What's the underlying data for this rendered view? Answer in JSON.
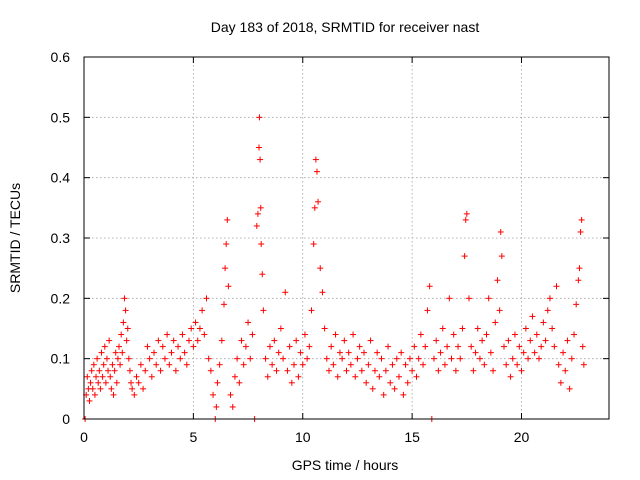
{
  "chart_data": {
    "type": "scatter",
    "title": "Day 183 of 2018, SRMTID for receiver nast",
    "xlabel": "GPS time / hours",
    "ylabel": "SRMTID / TECUs",
    "xlim": [
      0,
      24
    ],
    "ylim": [
      0,
      0.6
    ],
    "xticks": [
      0,
      5,
      10,
      15,
      20
    ],
    "yticks": [
      0,
      0.1,
      0.2,
      0.3,
      0.4,
      0.5,
      0.6
    ],
    "xtick_labels": [
      "0",
      "5",
      "10",
      "15",
      "20"
    ],
    "ytick_labels": [
      "0",
      "0.1",
      "0.2",
      "0.3",
      "0.4",
      "0.5",
      "0.6"
    ],
    "grid": true,
    "marker": "+",
    "series": [
      {
        "name": "SRMTID",
        "color": "#ff0000",
        "points": [
          [
            0.05,
            0.0
          ],
          [
            0.1,
            0.04
          ],
          [
            0.15,
            0.07
          ],
          [
            0.2,
            0.05
          ],
          [
            0.25,
            0.03
          ],
          [
            0.3,
            0.06
          ],
          [
            0.35,
            0.08
          ],
          [
            0.4,
            0.05
          ],
          [
            0.45,
            0.09
          ],
          [
            0.5,
            0.04
          ],
          [
            0.55,
            0.07
          ],
          [
            0.6,
            0.1
          ],
          [
            0.65,
            0.06
          ],
          [
            0.7,
            0.08
          ],
          [
            0.75,
            0.05
          ],
          [
            0.8,
            0.11
          ],
          [
            0.85,
            0.07
          ],
          [
            0.9,
            0.09
          ],
          [
            0.95,
            0.12
          ],
          [
            1.0,
            0.06
          ],
          [
            1.05,
            0.1
          ],
          [
            1.1,
            0.08
          ],
          [
            1.15,
            0.13
          ],
          [
            1.2,
            0.07
          ],
          [
            1.25,
            0.05
          ],
          [
            1.3,
            0.09
          ],
          [
            1.35,
            0.04
          ],
          [
            1.4,
            0.08
          ],
          [
            1.45,
            0.11
          ],
          [
            1.5,
            0.06
          ],
          [
            1.55,
            0.1
          ],
          [
            1.6,
            0.12
          ],
          [
            1.65,
            0.09
          ],
          [
            1.7,
            0.14
          ],
          [
            1.75,
            0.11
          ],
          [
            1.8,
            0.16
          ],
          [
            1.85,
            0.2
          ],
          [
            1.9,
            0.18
          ],
          [
            1.95,
            0.13
          ],
          [
            2.0,
            0.15
          ],
          [
            2.05,
            0.1
          ],
          [
            2.1,
            0.08
          ],
          [
            2.15,
            0.06
          ],
          [
            2.2,
            0.05
          ],
          [
            2.3,
            0.04
          ],
          [
            2.4,
            0.07
          ],
          [
            2.5,
            0.06
          ],
          [
            2.6,
            0.09
          ],
          [
            2.7,
            0.05
          ],
          [
            2.8,
            0.08
          ],
          [
            2.9,
            0.12
          ],
          [
            3.0,
            0.1
          ],
          [
            3.1,
            0.07
          ],
          [
            3.2,
            0.11
          ],
          [
            3.3,
            0.09
          ],
          [
            3.4,
            0.13
          ],
          [
            3.5,
            0.08
          ],
          [
            3.6,
            0.12
          ],
          [
            3.7,
            0.1
          ],
          [
            3.8,
            0.14
          ],
          [
            3.9,
            0.09
          ],
          [
            4.0,
            0.11
          ],
          [
            4.1,
            0.13
          ],
          [
            4.2,
            0.08
          ],
          [
            4.3,
            0.12
          ],
          [
            4.4,
            0.1
          ],
          [
            4.5,
            0.14
          ],
          [
            4.6,
            0.11
          ],
          [
            4.7,
            0.09
          ],
          [
            4.8,
            0.13
          ],
          [
            4.9,
            0.15
          ],
          [
            5.0,
            0.12
          ],
          [
            5.1,
            0.16
          ],
          [
            5.2,
            0.13
          ],
          [
            5.3,
            0.15
          ],
          [
            5.4,
            0.18
          ],
          [
            5.5,
            0.14
          ],
          [
            5.6,
            0.2
          ],
          [
            5.7,
            0.1
          ],
          [
            5.8,
            0.08
          ],
          [
            5.9,
            0.04
          ],
          [
            6.0,
            0.0
          ],
          [
            6.05,
            0.02
          ],
          [
            6.1,
            0.06
          ],
          [
            6.2,
            0.09
          ],
          [
            6.3,
            0.13
          ],
          [
            6.4,
            0.19
          ],
          [
            6.45,
            0.25
          ],
          [
            6.5,
            0.29
          ],
          [
            6.55,
            0.33
          ],
          [
            6.6,
            0.22
          ],
          [
            6.7,
            0.04
          ],
          [
            6.8,
            0.02
          ],
          [
            6.9,
            0.07
          ],
          [
            7.0,
            0.1
          ],
          [
            7.1,
            0.06
          ],
          [
            7.2,
            0.13
          ],
          [
            7.3,
            0.09
          ],
          [
            7.4,
            0.12
          ],
          [
            7.5,
            0.16
          ],
          [
            7.6,
            0.1
          ],
          [
            7.7,
            0.14
          ],
          [
            7.8,
            0.0
          ],
          [
            7.9,
            0.32
          ],
          [
            7.95,
            0.34
          ],
          [
            8.0,
            0.45
          ],
          [
            8.02,
            0.5
          ],
          [
            8.05,
            0.43
          ],
          [
            8.08,
            0.35
          ],
          [
            8.1,
            0.29
          ],
          [
            8.15,
            0.24
          ],
          [
            8.2,
            0.18
          ],
          [
            8.3,
            0.1
          ],
          [
            8.4,
            0.07
          ],
          [
            8.5,
            0.12
          ],
          [
            8.6,
            0.09
          ],
          [
            8.7,
            0.13
          ],
          [
            8.8,
            0.08
          ],
          [
            8.9,
            0.11
          ],
          [
            9.0,
            0.15
          ],
          [
            9.1,
            0.1
          ],
          [
            9.2,
            0.21
          ],
          [
            9.3,
            0.08
          ],
          [
            9.4,
            0.12
          ],
          [
            9.5,
            0.06
          ],
          [
            9.6,
            0.09
          ],
          [
            9.7,
            0.13
          ],
          [
            9.8,
            0.07
          ],
          [
            9.9,
            0.11
          ],
          [
            10.0,
            0.09
          ],
          [
            10.1,
            0.14
          ],
          [
            10.2,
            0.1
          ],
          [
            10.3,
            0.12
          ],
          [
            10.4,
            0.18
          ],
          [
            10.5,
            0.29
          ],
          [
            10.55,
            0.35
          ],
          [
            10.6,
            0.43
          ],
          [
            10.65,
            0.41
          ],
          [
            10.7,
            0.36
          ],
          [
            10.8,
            0.25
          ],
          [
            10.9,
            0.21
          ],
          [
            11.0,
            0.15
          ],
          [
            11.1,
            0.1
          ],
          [
            11.2,
            0.08
          ],
          [
            11.3,
            0.12
          ],
          [
            11.4,
            0.09
          ],
          [
            11.5,
            0.14
          ],
          [
            11.6,
            0.07
          ],
          [
            11.7,
            0.11
          ],
          [
            11.8,
            0.1
          ],
          [
            11.9,
            0.13
          ],
          [
            12.0,
            0.08
          ],
          [
            12.1,
            0.11
          ],
          [
            12.2,
            0.09
          ],
          [
            12.3,
            0.14
          ],
          [
            12.4,
            0.07
          ],
          [
            12.5,
            0.1
          ],
          [
            12.6,
            0.12
          ],
          [
            12.7,
            0.08
          ],
          [
            12.8,
            0.11
          ],
          [
            12.9,
            0.06
          ],
          [
            13.0,
            0.09
          ],
          [
            13.1,
            0.13
          ],
          [
            13.2,
            0.05
          ],
          [
            13.3,
            0.08
          ],
          [
            13.4,
            0.11
          ],
          [
            13.5,
            0.07
          ],
          [
            13.6,
            0.1
          ],
          [
            13.7,
            0.04
          ],
          [
            13.8,
            0.08
          ],
          [
            13.9,
            0.12
          ],
          [
            14.0,
            0.06
          ],
          [
            14.1,
            0.09
          ],
          [
            14.2,
            0.05
          ],
          [
            14.3,
            0.1
          ],
          [
            14.4,
            0.07
          ],
          [
            14.5,
            0.11
          ],
          [
            14.6,
            0.04
          ],
          [
            14.7,
            0.09
          ],
          [
            14.8,
            0.06
          ],
          [
            14.9,
            0.1
          ],
          [
            15.0,
            0.08
          ],
          [
            15.1,
            0.12
          ],
          [
            15.2,
            0.07
          ],
          [
            15.3,
            0.1
          ],
          [
            15.4,
            0.14
          ],
          [
            15.5,
            0.09
          ],
          [
            15.6,
            0.12
          ],
          [
            15.7,
            0.18
          ],
          [
            15.8,
            0.22
          ],
          [
            15.9,
            0.0
          ],
          [
            16.0,
            0.1
          ],
          [
            16.1,
            0.13
          ],
          [
            16.2,
            0.08
          ],
          [
            16.3,
            0.11
          ],
          [
            16.4,
            0.15
          ],
          [
            16.5,
            0.09
          ],
          [
            16.6,
            0.12
          ],
          [
            16.7,
            0.2
          ],
          [
            16.8,
            0.1
          ],
          [
            16.9,
            0.14
          ],
          [
            17.0,
            0.08
          ],
          [
            17.1,
            0.12
          ],
          [
            17.2,
            0.1
          ],
          [
            17.3,
            0.15
          ],
          [
            17.4,
            0.27
          ],
          [
            17.45,
            0.33
          ],
          [
            17.5,
            0.34
          ],
          [
            17.6,
            0.2
          ],
          [
            17.7,
            0.12
          ],
          [
            17.8,
            0.08
          ],
          [
            17.9,
            0.11
          ],
          [
            18.0,
            0.15
          ],
          [
            18.1,
            0.1
          ],
          [
            18.2,
            0.13
          ],
          [
            18.3,
            0.09
          ],
          [
            18.4,
            0.14
          ],
          [
            18.5,
            0.2
          ],
          [
            18.6,
            0.11
          ],
          [
            18.7,
            0.08
          ],
          [
            18.8,
            0.16
          ],
          [
            18.9,
            0.23
          ],
          [
            19.0,
            0.18
          ],
          [
            19.05,
            0.31
          ],
          [
            19.1,
            0.27
          ],
          [
            19.2,
            0.12
          ],
          [
            19.3,
            0.09
          ],
          [
            19.4,
            0.13
          ],
          [
            19.5,
            0.07
          ],
          [
            19.6,
            0.1
          ],
          [
            19.7,
            0.14
          ],
          [
            19.8,
            0.09
          ],
          [
            19.9,
            0.12
          ],
          [
            20.0,
            0.08
          ],
          [
            20.1,
            0.11
          ],
          [
            20.2,
            0.15
          ],
          [
            20.3,
            0.1
          ],
          [
            20.4,
            0.13
          ],
          [
            20.5,
            0.17
          ],
          [
            20.6,
            0.11
          ],
          [
            20.7,
            0.14
          ],
          [
            20.8,
            0.1
          ],
          [
            20.9,
            0.12
          ],
          [
            21.0,
            0.16
          ],
          [
            21.1,
            0.13
          ],
          [
            21.2,
            0.18
          ],
          [
            21.3,
            0.2
          ],
          [
            21.4,
            0.15
          ],
          [
            21.5,
            0.12
          ],
          [
            21.6,
            0.22
          ],
          [
            21.7,
            0.09
          ],
          [
            21.8,
            0.06
          ],
          [
            21.9,
            0.11
          ],
          [
            22.0,
            0.08
          ],
          [
            22.1,
            0.13
          ],
          [
            22.2,
            0.05
          ],
          [
            22.3,
            0.1
          ],
          [
            22.4,
            0.14
          ],
          [
            22.5,
            0.19
          ],
          [
            22.6,
            0.23
          ],
          [
            22.65,
            0.25
          ],
          [
            22.7,
            0.31
          ],
          [
            22.75,
            0.33
          ],
          [
            22.8,
            0.12
          ],
          [
            22.85,
            0.09
          ]
        ]
      }
    ]
  }
}
